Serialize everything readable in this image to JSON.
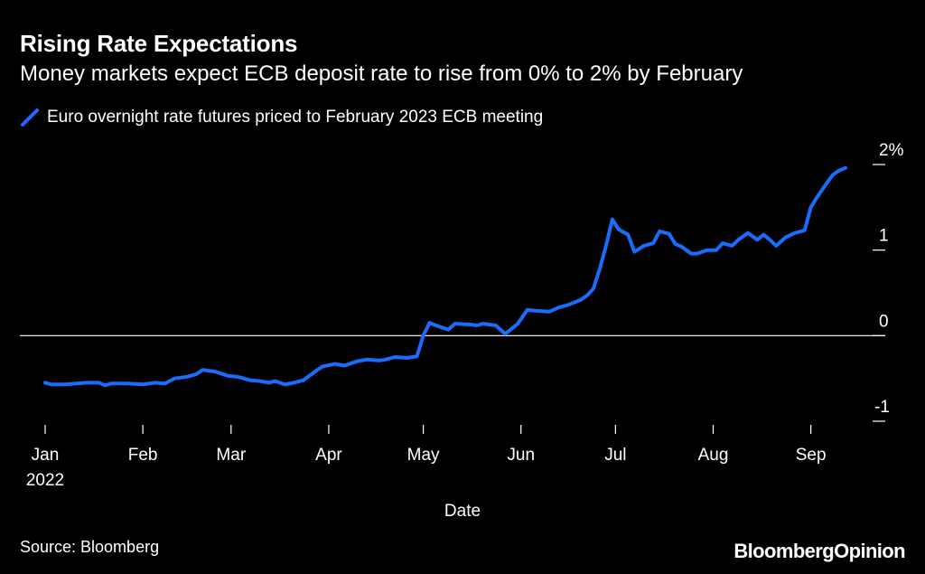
{
  "title": "Rising Rate Expectations",
  "subtitle": "Money markets expect ECB deposit rate to rise from 0% to 2% by February",
  "source": "Source: Bloomberg",
  "brand": {
    "part1": "Bloomberg",
    "part2": "Opinion"
  },
  "colors": {
    "background": "#000000",
    "series": "#1a6cff",
    "text": "#ffffff"
  },
  "chart_data": {
    "type": "line",
    "xlabel": "Date",
    "ylabel": "",
    "ylim": [
      -1,
      2
    ],
    "y_ticks": [
      {
        "value": 2,
        "label": "2%"
      },
      {
        "value": 1,
        "label": "1"
      },
      {
        "value": 0,
        "label": "0"
      },
      {
        "value": -1,
        "label": "-1"
      }
    ],
    "x_ticks": [
      {
        "date": "2022-01-01",
        "label": "Jan",
        "sublabel": "2022"
      },
      {
        "date": "2022-02-01",
        "label": "Feb"
      },
      {
        "date": "2022-03-01",
        "label": "Mar"
      },
      {
        "date": "2022-04-01",
        "label": "Apr"
      },
      {
        "date": "2022-05-01",
        "label": "May"
      },
      {
        "date": "2022-06-01",
        "label": "Jun"
      },
      {
        "date": "2022-07-01",
        "label": "Jul"
      },
      {
        "date": "2022-08-01",
        "label": "Aug"
      },
      {
        "date": "2022-09-01",
        "label": "Sep"
      }
    ],
    "xlim": [
      "2022-01-01",
      "2022-09-12"
    ],
    "zero_line": true,
    "legend_position": "top-left",
    "series": [
      {
        "name": "Euro overnight rate futures priced to February 2023 ECB meeting",
        "color": "#1a6cff",
        "points": [
          [
            "2022-01-01",
            -0.55
          ],
          [
            "2022-01-03",
            -0.57
          ],
          [
            "2022-01-07",
            -0.57
          ],
          [
            "2022-01-11",
            -0.56
          ],
          [
            "2022-01-14",
            -0.55
          ],
          [
            "2022-01-18",
            -0.55
          ],
          [
            "2022-01-20",
            -0.58
          ],
          [
            "2022-01-22",
            -0.56
          ],
          [
            "2022-01-27",
            -0.56
          ],
          [
            "2022-02-01",
            -0.57
          ],
          [
            "2022-02-05",
            -0.55
          ],
          [
            "2022-02-08",
            -0.56
          ],
          [
            "2022-02-11",
            -0.5
          ],
          [
            "2022-02-15",
            -0.48
          ],
          [
            "2022-02-18",
            -0.45
          ],
          [
            "2022-02-20",
            -0.4
          ],
          [
            "2022-02-24",
            -0.42
          ],
          [
            "2022-02-28",
            -0.47
          ],
          [
            "2022-03-03",
            -0.48
          ],
          [
            "2022-03-07",
            -0.52
          ],
          [
            "2022-03-10",
            -0.53
          ],
          [
            "2022-03-13",
            -0.55
          ],
          [
            "2022-03-15",
            -0.53
          ],
          [
            "2022-03-18",
            -0.57
          ],
          [
            "2022-03-21",
            -0.55
          ],
          [
            "2022-03-24",
            -0.52
          ],
          [
            "2022-03-28",
            -0.41
          ],
          [
            "2022-03-30",
            -0.36
          ],
          [
            "2022-04-03",
            -0.33
          ],
          [
            "2022-04-06",
            -0.35
          ],
          [
            "2022-04-10",
            -0.3
          ],
          [
            "2022-04-13",
            -0.28
          ],
          [
            "2022-04-17",
            -0.29
          ],
          [
            "2022-04-19",
            -0.28
          ],
          [
            "2022-04-22",
            -0.25
          ],
          [
            "2022-04-26",
            -0.26
          ],
          [
            "2022-04-29",
            -0.24
          ],
          [
            "2022-05-01",
            0.0
          ],
          [
            "2022-05-03",
            0.15
          ],
          [
            "2022-05-05",
            0.12
          ],
          [
            "2022-05-09",
            0.07
          ],
          [
            "2022-05-11",
            0.14
          ],
          [
            "2022-05-16",
            0.13
          ],
          [
            "2022-05-18",
            0.12
          ],
          [
            "2022-05-20",
            0.14
          ],
          [
            "2022-05-24",
            0.12
          ],
          [
            "2022-05-27",
            0.02
          ],
          [
            "2022-05-31",
            0.14
          ],
          [
            "2022-06-03",
            0.3
          ],
          [
            "2022-06-06",
            0.29
          ],
          [
            "2022-06-10",
            0.28
          ],
          [
            "2022-06-13",
            0.33
          ],
          [
            "2022-06-16",
            0.36
          ],
          [
            "2022-06-20",
            0.42
          ],
          [
            "2022-06-22",
            0.47
          ],
          [
            "2022-06-24",
            0.55
          ],
          [
            "2022-06-26",
            0.78
          ],
          [
            "2022-06-28",
            1.05
          ],
          [
            "2022-06-30",
            1.36
          ],
          [
            "2022-07-02",
            1.24
          ],
          [
            "2022-07-05",
            1.18
          ],
          [
            "2022-07-07",
            0.98
          ],
          [
            "2022-07-10",
            1.05
          ],
          [
            "2022-07-13",
            1.08
          ],
          [
            "2022-07-15",
            1.22
          ],
          [
            "2022-07-18",
            1.19
          ],
          [
            "2022-07-20",
            1.07
          ],
          [
            "2022-07-22",
            1.04
          ],
          [
            "2022-07-25",
            0.96
          ],
          [
            "2022-07-27",
            0.96
          ],
          [
            "2022-07-30",
            1.0
          ],
          [
            "2022-08-02",
            1.0
          ],
          [
            "2022-08-04",
            1.08
          ],
          [
            "2022-08-07",
            1.05
          ],
          [
            "2022-08-09",
            1.12
          ],
          [
            "2022-08-12",
            1.2
          ],
          [
            "2022-08-15",
            1.12
          ],
          [
            "2022-08-17",
            1.18
          ],
          [
            "2022-08-19",
            1.12
          ],
          [
            "2022-08-21",
            1.05
          ],
          [
            "2022-08-24",
            1.15
          ],
          [
            "2022-08-27",
            1.2
          ],
          [
            "2022-08-30",
            1.23
          ],
          [
            "2022-09-01",
            1.5
          ],
          [
            "2022-09-03",
            1.62
          ],
          [
            "2022-09-06",
            1.78
          ],
          [
            "2022-09-08",
            1.88
          ],
          [
            "2022-09-10",
            1.93
          ],
          [
            "2022-09-12",
            1.96
          ]
        ]
      }
    ]
  }
}
